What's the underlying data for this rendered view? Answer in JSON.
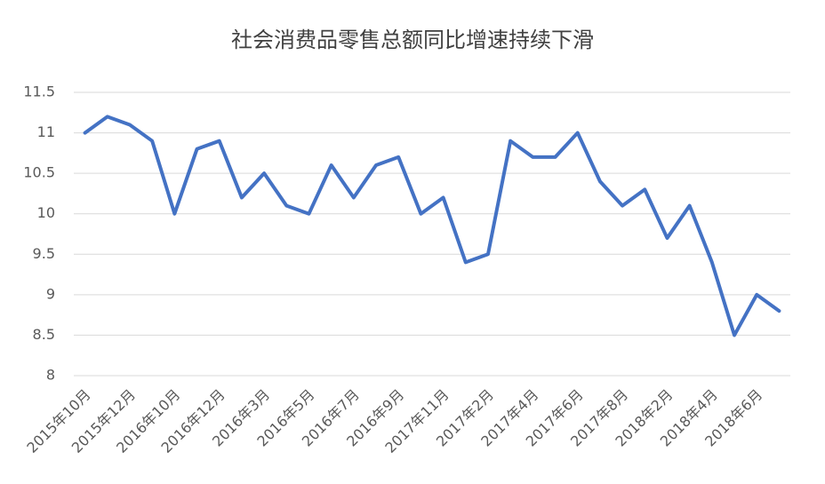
{
  "chart_data": {
    "type": "line",
    "title": "社会消费品零售总额同比增速持续下滑",
    "categories": [
      "2015年10月",
      null,
      "2015年12月",
      null,
      "2016年10月",
      null,
      "2016年12月",
      null,
      "2016年3月",
      null,
      "2016年5月",
      null,
      "2016年7月",
      null,
      "2016年9月",
      null,
      "2017年11月",
      null,
      "2017年2月",
      null,
      "2017年4月",
      null,
      "2017年6月",
      null,
      "2017年8月",
      null,
      "2018年2月",
      null,
      "2018年4月",
      null,
      "2018年6月",
      null
    ],
    "series": [
      {
        "color": "#4472c4",
        "values": [
          11.0,
          11.2,
          11.1,
          10.9,
          10.0,
          10.8,
          10.9,
          10.2,
          10.5,
          10.1,
          10.0,
          10.6,
          10.2,
          10.6,
          10.7,
          10.0,
          10.2,
          9.4,
          9.5,
          10.9,
          10.7,
          10.7,
          11.0,
          10.4,
          10.1,
          10.3,
          9.7,
          10.1,
          9.4,
          8.5,
          9.0,
          8.8
        ]
      }
    ],
    "ylim": [
      8,
      11.5
    ],
    "yticks": [
      8,
      8.5,
      9,
      9.5,
      10,
      10.5,
      11,
      11.5
    ],
    "grid": true
  }
}
